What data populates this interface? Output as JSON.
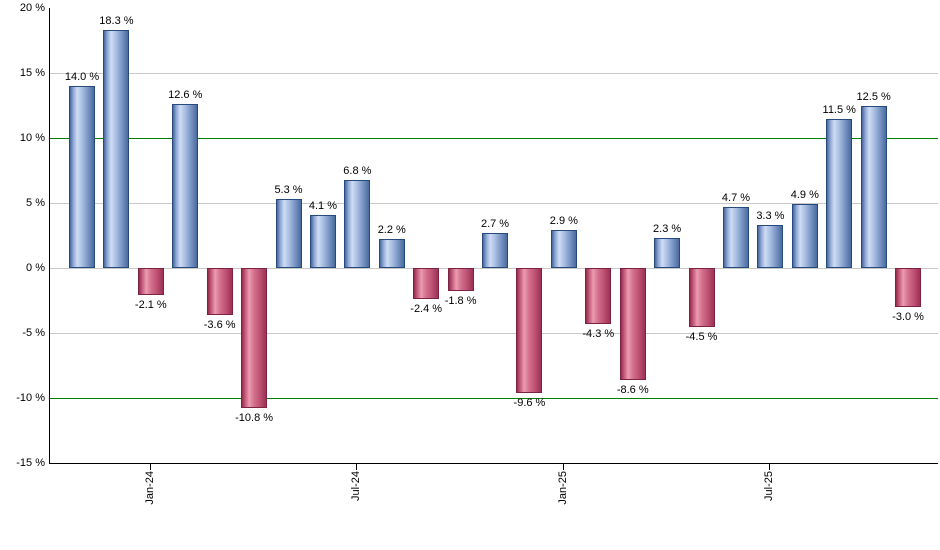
{
  "chart_data": {
    "type": "bar",
    "title": "",
    "unit": "%",
    "values": [
      14.0,
      18.3,
      -2.1,
      12.6,
      -3.6,
      -10.8,
      5.3,
      4.1,
      6.8,
      2.2,
      -2.4,
      -1.8,
      2.7,
      -9.6,
      2.9,
      -4.3,
      -8.6,
      2.3,
      -4.5,
      4.7,
      3.3,
      4.9,
      11.5,
      12.5,
      -3.0
    ],
    "bar_labels": [
      "14.0 %",
      "18.3 %",
      "-2.1 %",
      "12.6 %",
      "-3.6 %",
      "-10.8 %",
      "5.3 %",
      "4.1 %",
      "6.8 %",
      "2.2 %",
      "-2.4 %",
      "-1.8 %",
      "2.7 %",
      "-9.6 %",
      "2.9 %",
      "-4.3 %",
      "-8.6 %",
      "2.3 %",
      "-4.5 %",
      "4.7 %",
      "3.3 %",
      "4.9 %",
      "11.5 %",
      "12.5 %",
      "-3.0 %"
    ],
    "x_ticks": [
      {
        "bar_index": 2,
        "label": "Jan-24"
      },
      {
        "bar_index": 8,
        "label": "Jul-24"
      },
      {
        "bar_index": 14,
        "label": "Jan-25"
      },
      {
        "bar_index": 20,
        "label": "Jul-25"
      }
    ],
    "y_axis": {
      "min": -15,
      "max": 20,
      "step": 5,
      "tick_labels": [
        "20 %",
        "15 %",
        "10 %",
        "5 %",
        "0 %",
        "-5 %",
        "-10 %",
        "-15 %"
      ]
    },
    "reference_lines": [
      10,
      -10
    ],
    "grid": true,
    "legend": null,
    "colors": {
      "positive_bar_base": "#7f9dd0",
      "negative_bar_base": "#c9557a",
      "reference_line": "#008000",
      "gridline": "#c9c9c9",
      "axis": "#000000",
      "background": "#ffffff",
      "label_text": "#000000"
    }
  }
}
